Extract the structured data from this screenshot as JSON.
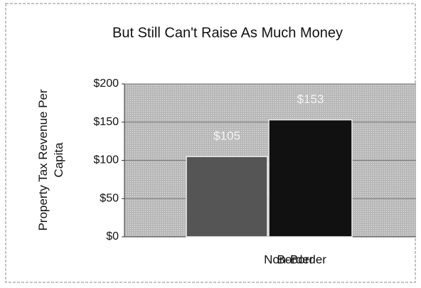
{
  "chart_data": {
    "type": "bar",
    "title": "But Still Can't Raise As Much Money",
    "y_label": [
      "Property Tax Revenue Per",
      "Capita"
    ],
    "categories": [
      "Border",
      "Non-Border"
    ],
    "values": [
      105,
      153
    ],
    "value_labels": [
      "$105",
      "$153"
    ],
    "colors": [
      "#555555",
      "#111111"
    ],
    "ylim": [
      0,
      200
    ],
    "yticks": [
      {
        "value": 0,
        "label": "$0"
      },
      {
        "value": 50,
        "label": "$50"
      },
      {
        "value": 100,
        "label": "$100"
      },
      {
        "value": 150,
        "label": "$150"
      },
      {
        "value": 200,
        "label": "$200"
      }
    ],
    "grid": true
  }
}
